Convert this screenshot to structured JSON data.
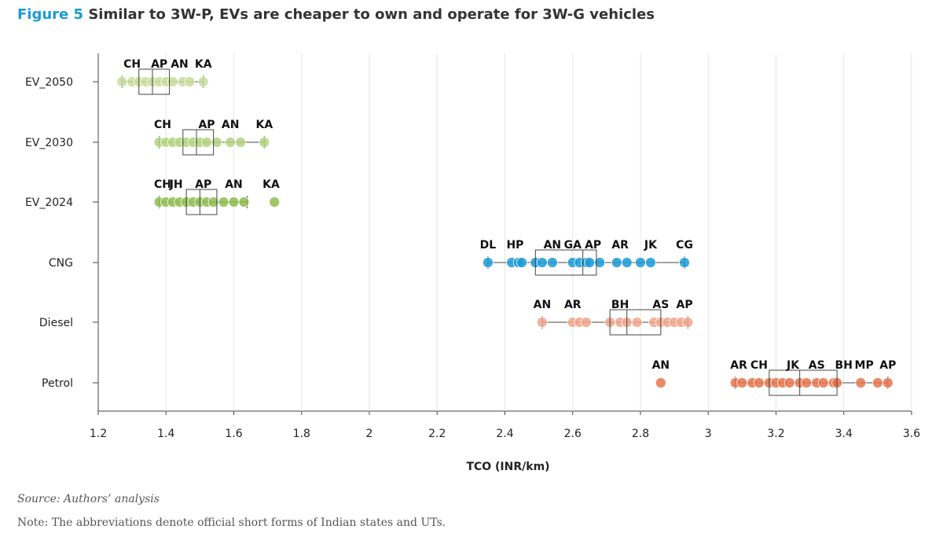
{
  "figure": {
    "label": "Figure 5",
    "title": "Similar to 3W-P, EVs are cheaper to own and operate for 3W-G vehicles"
  },
  "source": "Source: Authors’ analysis",
  "note": "Note: The abbreviations denote official short forms of Indian states and UTs.",
  "chart_data": {
    "type": "box-scatter",
    "orientation": "horizontal",
    "xlabel": "TCO (INR/km)",
    "ylabel": "",
    "xlim": [
      1.2,
      3.6
    ],
    "xticks": [
      1.2,
      1.4,
      1.6,
      1.8,
      2,
      2.2,
      2.4,
      2.6,
      2.8,
      3,
      3.2,
      3.4,
      3.6
    ],
    "grid": "vertical",
    "series": [
      {
        "name": "EV_2050",
        "color": "#c6dd9a",
        "box": {
          "whisker_low": 1.27,
          "q1": 1.32,
          "median": 1.36,
          "q3": 1.41,
          "whisker_high": 1.51
        },
        "points": [
          1.27,
          1.3,
          1.32,
          1.34,
          1.36,
          1.38,
          1.4,
          1.42,
          1.45,
          1.47,
          1.51
        ],
        "labels": [
          {
            "text": "CH",
            "x": 1.3
          },
          {
            "text": "AP",
            "x": 1.38
          },
          {
            "text": "AN",
            "x": 1.44
          },
          {
            "text": "KA",
            "x": 1.51
          }
        ]
      },
      {
        "name": "EV_2030",
        "color": "#b2d37f",
        "box": {
          "whisker_low": 1.38,
          "q1": 1.45,
          "median": 1.49,
          "q3": 1.54,
          "whisker_high": 1.69
        },
        "points": [
          1.38,
          1.4,
          1.42,
          1.44,
          1.46,
          1.48,
          1.5,
          1.52,
          1.55,
          1.59,
          1.62,
          1.69
        ],
        "labels": [
          {
            "text": "CH",
            "x": 1.39
          },
          {
            "text": "AP",
            "x": 1.52
          },
          {
            "text": "AN",
            "x": 1.59
          },
          {
            "text": "KA",
            "x": 1.69
          }
        ]
      },
      {
        "name": "EV_2024",
        "color": "#8fbc4e",
        "box": {
          "whisker_low": 1.38,
          "q1": 1.46,
          "median": 1.5,
          "q3": 1.55,
          "whisker_high": 1.64
        },
        "points": [
          1.38,
          1.4,
          1.42,
          1.44,
          1.46,
          1.48,
          1.5,
          1.52,
          1.54,
          1.57,
          1.6,
          1.63,
          1.72
        ],
        "labels": [
          {
            "text": "CH",
            "x": 1.39
          },
          {
            "text": "JH",
            "x": 1.43
          },
          {
            "text": "AP",
            "x": 1.51
          },
          {
            "text": "AN",
            "x": 1.6
          },
          {
            "text": "KA",
            "x": 1.71
          }
        ]
      },
      {
        "name": "CNG",
        "color": "#1a9ad6",
        "box": {
          "whisker_low": 2.35,
          "q1": 2.49,
          "median": 2.63,
          "q3": 2.67,
          "whisker_high": 2.93
        },
        "points": [
          2.35,
          2.42,
          2.44,
          2.45,
          2.49,
          2.51,
          2.54,
          2.6,
          2.62,
          2.64,
          2.65,
          2.68,
          2.73,
          2.76,
          2.8,
          2.83,
          2.93
        ],
        "labels": [
          {
            "text": "DL",
            "x": 2.35
          },
          {
            "text": "HP",
            "x": 2.43
          },
          {
            "text": "AN",
            "x": 2.54
          },
          {
            "text": "GA",
            "x": 2.6
          },
          {
            "text": "AP",
            "x": 2.66
          },
          {
            "text": "AR",
            "x": 2.74
          },
          {
            "text": "JK",
            "x": 2.83
          },
          {
            "text": "CG",
            "x": 2.93
          }
        ]
      },
      {
        "name": "Diesel",
        "color": "#f0a589",
        "box": {
          "whisker_low": 2.51,
          "q1": 2.71,
          "median": 2.76,
          "q3": 2.86,
          "whisker_high": 2.94
        },
        "points": [
          2.51,
          2.6,
          2.62,
          2.64,
          2.71,
          2.74,
          2.76,
          2.79,
          2.84,
          2.86,
          2.88,
          2.9,
          2.92,
          2.94
        ],
        "labels": [
          {
            "text": "AN",
            "x": 2.51
          },
          {
            "text": "AR",
            "x": 2.6
          },
          {
            "text": "BH",
            "x": 2.74
          },
          {
            "text": "AS",
            "x": 2.86
          },
          {
            "text": "AP",
            "x": 2.93
          }
        ]
      },
      {
        "name": "Petrol",
        "color": "#e8734a",
        "box": {
          "whisker_low": 3.08,
          "q1": 3.18,
          "median": 3.27,
          "q3": 3.38,
          "whisker_high": 3.53
        },
        "points": [
          2.86,
          3.08,
          3.1,
          3.13,
          3.15,
          3.18,
          3.2,
          3.22,
          3.24,
          3.27,
          3.29,
          3.32,
          3.34,
          3.37,
          3.38,
          3.45,
          3.5,
          3.53
        ],
        "labels": [
          {
            "text": "AN",
            "x": 2.86
          },
          {
            "text": "AR",
            "x": 3.09
          },
          {
            "text": "CH",
            "x": 3.15
          },
          {
            "text": "JK",
            "x": 3.25
          },
          {
            "text": "AS",
            "x": 3.32
          },
          {
            "text": "BH",
            "x": 3.4
          },
          {
            "text": "MP",
            "x": 3.46
          },
          {
            "text": "AP",
            "x": 3.53
          }
        ]
      }
    ]
  }
}
